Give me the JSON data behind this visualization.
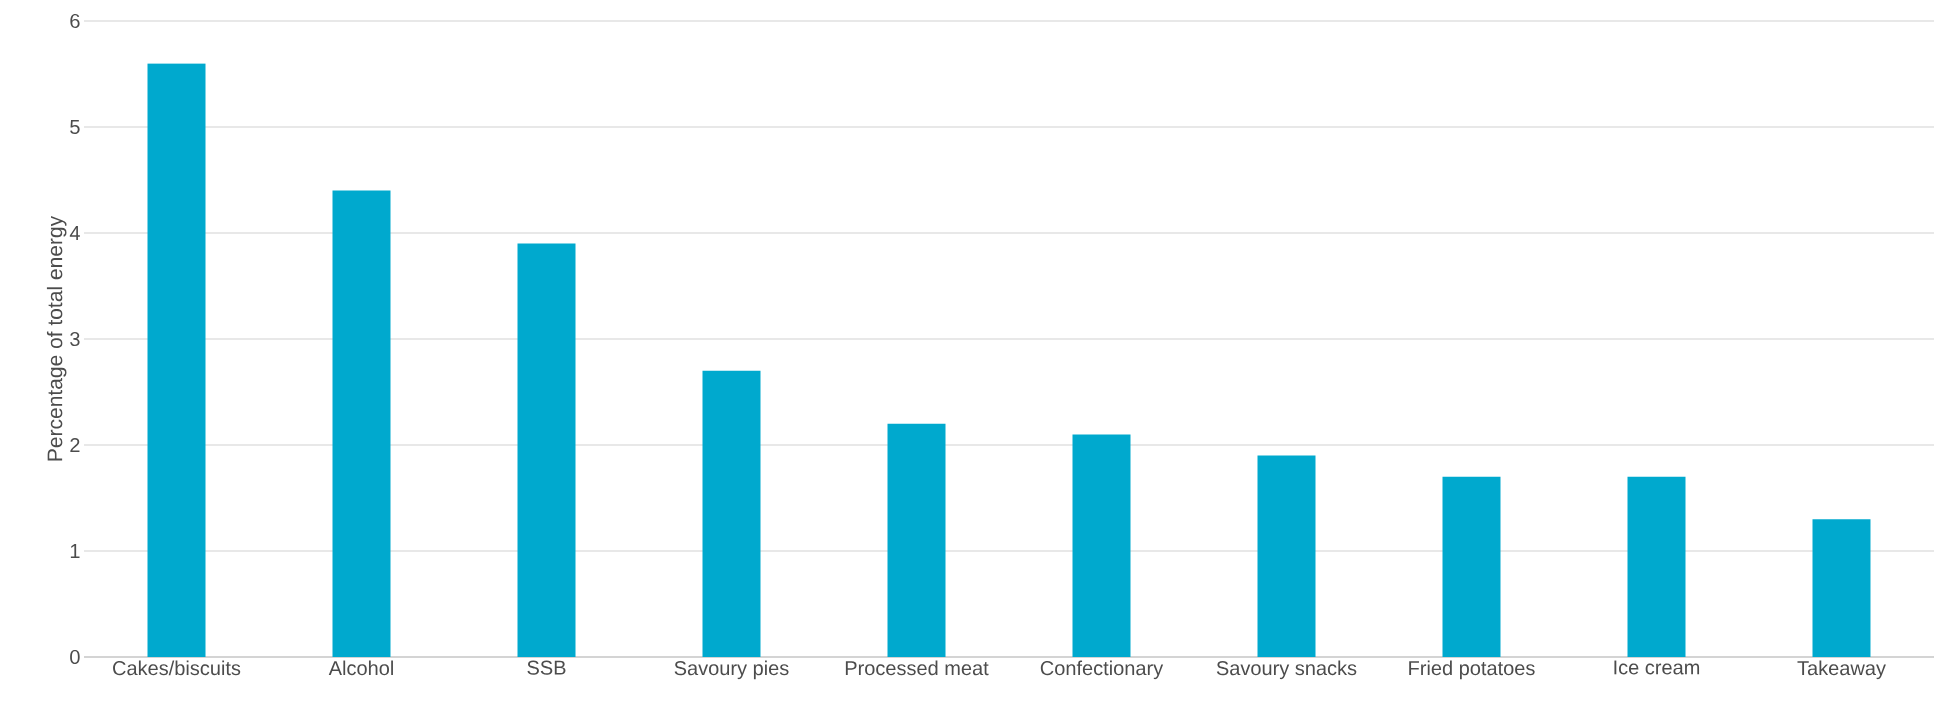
{
  "chart_data": {
    "type": "bar",
    "ylabel": "Percentage of total energy",
    "categories": [
      "Cakes/biscuits",
      "Alcohol",
      "SSB",
      "Savoury pies",
      "Processed meat",
      "Confectionary",
      "Savoury snacks",
      "Fried potatoes",
      "Ice cream",
      "Takeaway"
    ],
    "values": [
      5.6,
      4.4,
      3.9,
      2.7,
      2.2,
      2.1,
      1.9,
      1.7,
      1.7,
      1.3
    ],
    "color": "#00a9ce",
    "ylim": [
      0,
      6
    ],
    "yticks": [
      0,
      1,
      2,
      3,
      4,
      5,
      6
    ],
    "grid": "y"
  }
}
